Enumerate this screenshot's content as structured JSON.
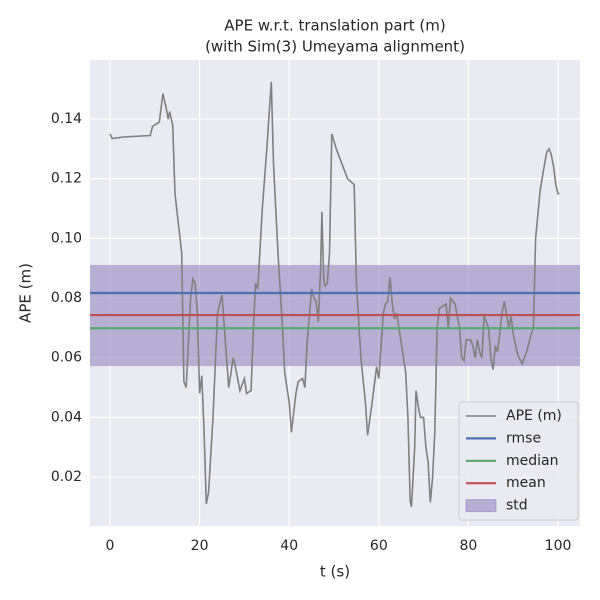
{
  "chart_data": {
    "type": "line",
    "title": [
      "APE w.r.t. translation part (m)",
      "(with Sim(3) Umeyama alignment)"
    ],
    "xlabel": "t (s)",
    "ylabel": "APE (m)",
    "xlim": [
      -4.46,
      104.9
    ],
    "ylim": [
      0.0036,
      0.1598
    ],
    "xticks": [
      0,
      20,
      40,
      60,
      80,
      100
    ],
    "yticks": [
      0.02,
      0.04,
      0.06,
      0.08,
      {
        "value": 0.1,
        "label": "0.10"
      },
      0.12,
      0.14
    ],
    "grid": true,
    "legend": "lower right",
    "series": [
      {
        "name": "APE (m)",
        "color": "#808080",
        "x": [
          0,
          0.5,
          3,
          9,
          9.5,
          11,
          11.8,
          12.5,
          13,
          13.3,
          14,
          14.5,
          16,
          16.5,
          17,
          18,
          18.5,
          19,
          19.5,
          20,
          20.5,
          21,
          21.5,
          22,
          23,
          24,
          25,
          26,
          26.5,
          27,
          27.5,
          28,
          29,
          30,
          30.5,
          31.5,
          32,
          32.5,
          33,
          34,
          35,
          36,
          36.5,
          37.5,
          38.5,
          39,
          40,
          40.5,
          41.5,
          42,
          43,
          43.5,
          44,
          45,
          45.5,
          46,
          46.5,
          47,
          47.3,
          47.7,
          48,
          48.5,
          49,
          49.5,
          50.5,
          53,
          54.5,
          55,
          56,
          57,
          57.5,
          58.5,
          59.5,
          60,
          61,
          61.5,
          62,
          62.5,
          63,
          63.5,
          64,
          65,
          66,
          66.5,
          67,
          67.3,
          68,
          68.3,
          69,
          69.3,
          70,
          70.5,
          71,
          71.5,
          72,
          72.5,
          73,
          73.5,
          75,
          75.5,
          76,
          77,
          78,
          78.5,
          79,
          79.5,
          80.5,
          81,
          81.5,
          82,
          82.5,
          83,
          83.5,
          84.5,
          85,
          85.5,
          86,
          86.5,
          87.5,
          88,
          89,
          89.5,
          90,
          91,
          92,
          93,
          94,
          94.5,
          95,
          96,
          97,
          97.5,
          98,
          98.5,
          99,
          99.5,
          100,
          100.3
        ],
        "values": [
          0.135,
          0.1335,
          0.134,
          0.1345,
          0.1375,
          0.139,
          0.1485,
          0.144,
          0.14,
          0.1425,
          0.138,
          0.115,
          0.095,
          0.052,
          0.05,
          0.08,
          0.0865,
          0.085,
          0.075,
          0.048,
          0.054,
          0.035,
          0.011,
          0.015,
          0.04,
          0.075,
          0.081,
          0.06,
          0.05,
          0.055,
          0.06,
          0.057,
          0.049,
          0.053,
          0.048,
          0.049,
          0.07,
          0.085,
          0.083,
          0.11,
          0.13,
          0.1525,
          0.125,
          0.095,
          0.07,
          0.055,
          0.045,
          0.035,
          0.048,
          0.052,
          0.053,
          0.05,
          0.065,
          0.083,
          0.08,
          0.079,
          0.072,
          0.09,
          0.109,
          0.086,
          0.084,
          0.085,
          0.095,
          0.135,
          0.13,
          0.12,
          0.118,
          0.085,
          0.06,
          0.045,
          0.034,
          0.045,
          0.057,
          0.053,
          0.075,
          0.078,
          0.079,
          0.087,
          0.078,
          0.073,
          0.075,
          0.065,
          0.055,
          0.04,
          0.012,
          0.01,
          0.03,
          0.049,
          0.042,
          0.04,
          0.04,
          0.03,
          0.025,
          0.0115,
          0.02,
          0.035,
          0.07,
          0.0765,
          0.078,
          0.07,
          0.08,
          0.078,
          0.07,
          0.06,
          0.059,
          0.066,
          0.066,
          0.064,
          0.06,
          0.066,
          0.062,
          0.06,
          0.074,
          0.07,
          0.06,
          0.056,
          0.064,
          0.062,
          0.075,
          0.079,
          0.07,
          0.074,
          0.068,
          0.061,
          0.058,
          0.062,
          0.068,
          0.07,
          0.1,
          0.116,
          0.125,
          0.129,
          0.13,
          0.128,
          0.124,
          0.118,
          0.115,
          0.115
        ]
      }
    ],
    "hlines": [
      {
        "name": "rmse",
        "color": "#4c72b0",
        "value": 0.0817
      },
      {
        "name": "median",
        "color": "#55a868",
        "value": 0.0699
      },
      {
        "name": "mean",
        "color": "#c44e52",
        "value": 0.0743
      }
    ],
    "band": {
      "name": "std",
      "color": "#8172b3",
      "values": [
        0.0572,
        0.0911
      ]
    }
  }
}
